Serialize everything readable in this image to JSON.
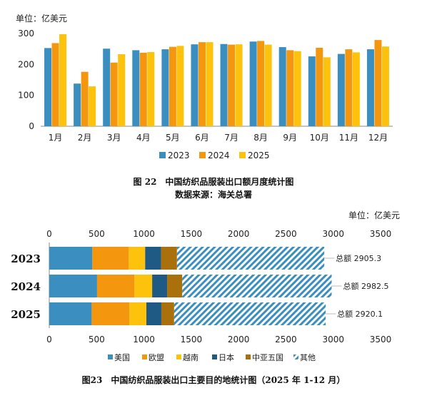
{
  "chart_data": [
    {
      "type": "bar",
      "unit_label": "单位：亿美元",
      "categories": [
        "1月",
        "2月",
        "3月",
        "4月",
        "5月",
        "6月",
        "7月",
        "8月",
        "9月",
        "10月",
        "11月",
        "12月"
      ],
      "series": [
        {
          "name": "2023",
          "color": "#3a8fc0",
          "values": [
            253,
            138,
            251,
            246,
            249,
            265,
            266,
            274,
            256,
            226,
            234,
            249
          ]
        },
        {
          "name": "2024",
          "color": "#f5960f",
          "values": [
            269,
            176,
            206,
            238,
            257,
            272,
            264,
            276,
            246,
            254,
            249,
            279
          ]
        },
        {
          "name": "2025",
          "color": "#fdc20c",
          "values": [
            298,
            129,
            233,
            240,
            260,
            272,
            265,
            264,
            243,
            223,
            239,
            258
          ]
        }
      ],
      "ylim": [
        0,
        300
      ],
      "yticks": [
        "0",
        "100",
        "200",
        "300"
      ],
      "legend_position": "bottom",
      "caption": "图 22　中国纺织品服装出口额月度统计图",
      "source": "数据来源：海关总署"
    },
    {
      "type": "bar",
      "orientation": "horizontal",
      "stacked": true,
      "unit_label": "单位：亿美元",
      "categories": [
        "2023",
        "2024",
        "2025"
      ],
      "series": [
        {
          "name": "美国",
          "color": "#3a8fc0",
          "pattern": "solid",
          "values": [
            455,
            505,
            448
          ]
        },
        {
          "name": "欧盟",
          "color": "#f5960f",
          "pattern": "solid",
          "values": [
            385,
            395,
            398
          ]
        },
        {
          "name": "越南",
          "color": "#fdc20c",
          "pattern": "solid",
          "values": [
            173,
            187,
            180
          ]
        },
        {
          "name": "日本",
          "color": "#1f5a85",
          "pattern": "solid",
          "values": [
            168,
            158,
            158
          ]
        },
        {
          "name": "中亚五国",
          "color": "#a9700c",
          "pattern": "solid",
          "values": [
            168,
            160,
            135
          ]
        },
        {
          "name": "其他",
          "color": "#3a8fc0",
          "pattern": "hatch",
          "values": [
            1556,
            1578,
            1601
          ]
        }
      ],
      "totals_label": "总额",
      "totals": [
        "2905.3",
        "2982.5",
        "2920.1"
      ],
      "xlim": [
        0,
        3500
      ],
      "xticks": [
        "0",
        "500",
        "1000",
        "1500",
        "2000",
        "2500",
        "3000",
        "3500"
      ],
      "legend_position": "bottom",
      "caption": "图23　中国纺织品服装出口主要目的地统计图（2025 年 1-12 月）"
    }
  ]
}
